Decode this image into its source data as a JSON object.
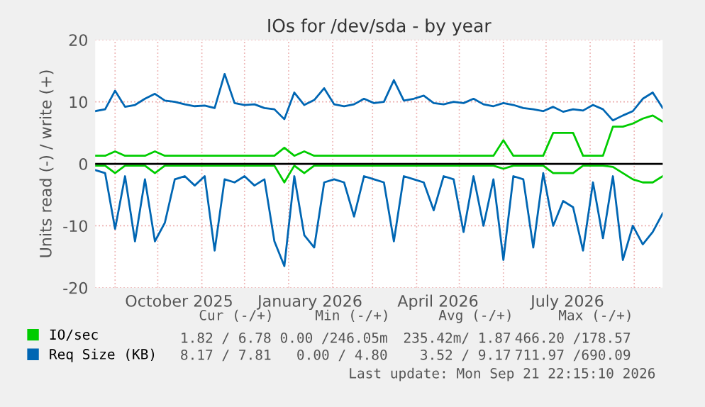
{
  "chart_data": {
    "type": "line",
    "title": "IOs for /dev/sda - by year",
    "ylabel": "Units read (-) / write (+)",
    "x": [
      "2025-08-18",
      "2025-08-25",
      "2025-09-01",
      "2025-09-08",
      "2025-09-15",
      "2025-09-22",
      "2025-09-29",
      "2025-10-06",
      "2025-10-13",
      "2025-10-20",
      "2025-10-27",
      "2025-11-03",
      "2025-11-10",
      "2025-11-17",
      "2025-11-24",
      "2025-12-01",
      "2025-12-08",
      "2025-12-15",
      "2025-12-22",
      "2025-12-29",
      "2026-01-05",
      "2026-01-12",
      "2026-01-19",
      "2026-01-26",
      "2026-02-02",
      "2026-02-09",
      "2026-02-16",
      "2026-02-23",
      "2026-03-02",
      "2026-03-09",
      "2026-03-16",
      "2026-03-23",
      "2026-03-30",
      "2026-04-06",
      "2026-04-13",
      "2026-04-20",
      "2026-04-27",
      "2026-05-04",
      "2026-05-11",
      "2026-05-18",
      "2026-05-25",
      "2026-06-01",
      "2026-06-08",
      "2026-06-15",
      "2026-06-22",
      "2026-06-29",
      "2026-07-06",
      "2026-07-13",
      "2026-07-20",
      "2026-07-27",
      "2026-08-03",
      "2026-08-10",
      "2026-08-17",
      "2026-08-24",
      "2026-08-31",
      "2026-09-07",
      "2026-09-14",
      "2026-09-21"
    ],
    "series": [
      {
        "name": "IO/sec",
        "color": "#00cc00",
        "values": [
          1.3,
          1.3,
          2.0,
          1.3,
          1.3,
          1.3,
          2.0,
          1.3,
          1.3,
          1.3,
          1.3,
          1.3,
          1.3,
          1.3,
          1.3,
          1.3,
          1.3,
          1.3,
          1.3,
          2.6,
          1.3,
          2.0,
          1.3,
          1.3,
          1.3,
          1.3,
          1.3,
          1.3,
          1.3,
          1.3,
          1.3,
          1.3,
          1.3,
          1.3,
          1.3,
          1.3,
          1.3,
          1.3,
          1.3,
          1.3,
          1.3,
          3.8,
          1.3,
          1.3,
          1.3,
          1.3,
          5.0,
          5.0,
          5.0,
          1.3,
          1.3,
          1.3,
          6.0,
          6.0,
          6.5,
          7.3,
          7.8,
          6.8
        ]
      },
      {
        "color": "#00cc00",
        "values": [
          -0.3,
          -0.3,
          -1.5,
          -0.3,
          -0.3,
          -0.3,
          -1.5,
          -0.3,
          -0.3,
          -0.3,
          -0.3,
          -0.3,
          -0.3,
          -0.3,
          -0.3,
          -0.3,
          -0.3,
          -0.3,
          -0.3,
          -3.0,
          -0.3,
          -1.5,
          -0.3,
          -0.3,
          -0.3,
          -0.3,
          -0.3,
          -0.3,
          -0.3,
          -0.3,
          -0.3,
          -0.3,
          -0.3,
          -0.3,
          -0.3,
          -0.3,
          -0.3,
          -0.3,
          -0.3,
          -0.3,
          -0.3,
          -0.8,
          -0.3,
          -0.3,
          -0.3,
          -0.3,
          -1.5,
          -1.5,
          -1.5,
          -0.3,
          -0.3,
          -0.3,
          -0.5,
          -1.5,
          -2.5,
          -3.0,
          -3.0,
          -2.0
        ]
      },
      {
        "name": "Req Size (KB)",
        "color": "#0066b3",
        "values": [
          8.5,
          8.8,
          11.8,
          9.2,
          9.5,
          10.5,
          11.3,
          10.2,
          10.0,
          9.6,
          9.3,
          9.4,
          9.0,
          14.5,
          9.8,
          9.5,
          9.6,
          9.0,
          8.8,
          7.2,
          11.5,
          9.5,
          10.3,
          12.2,
          9.6,
          9.3,
          9.6,
          10.5,
          9.8,
          10.0,
          13.5,
          10.2,
          10.5,
          11.0,
          9.8,
          9.6,
          10.0,
          9.8,
          10.5,
          9.6,
          9.3,
          9.8,
          9.5,
          9.0,
          8.8,
          8.5,
          9.2,
          8.4,
          8.8,
          8.6,
          9.5,
          8.8,
          7.0,
          7.8,
          8.5,
          10.5,
          11.5,
          9.0
        ]
      },
      {
        "color": "#0066b3",
        "values": [
          -1.0,
          -1.5,
          -10.5,
          -2.0,
          -12.5,
          -2.5,
          -12.5,
          -9.5,
          -2.5,
          -2.0,
          -3.5,
          -2.0,
          -14.0,
          -2.5,
          -3.0,
          -2.0,
          -3.5,
          -2.5,
          -12.5,
          -16.5,
          -2.0,
          -11.5,
          -13.5,
          -3.0,
          -2.5,
          -3.0,
          -8.5,
          -2.0,
          -2.5,
          -3.0,
          -12.5,
          -2.0,
          -2.5,
          -3.0,
          -7.5,
          -2.0,
          -2.5,
          -11.0,
          -2.0,
          -10.0,
          -2.5,
          -15.5,
          -2.0,
          -2.5,
          -13.5,
          -1.5,
          -10.0,
          -6.0,
          -7.0,
          -14.0,
          -3.0,
          -12.0,
          -2.0,
          -15.5,
          -10.0,
          -13.0,
          -11.0,
          -8.0
        ]
      }
    ],
    "xlim": [
      "2025-08-18",
      "2026-09-21"
    ],
    "xticks": [
      {
        "value": "2025-09-01",
        "label": null
      },
      {
        "value": "2025-10-01",
        "label": null
      },
      {
        "value": "2025-10-16",
        "label": "October 2025"
      },
      {
        "value": "2025-11-01",
        "label": null
      },
      {
        "value": "2025-12-01",
        "label": null
      },
      {
        "value": "2026-01-01",
        "label": null
      },
      {
        "value": "2026-01-16",
        "label": "January 2026"
      },
      {
        "value": "2026-02-01",
        "label": null
      },
      {
        "value": "2026-03-01",
        "label": null
      },
      {
        "value": "2026-04-01",
        "label": null
      },
      {
        "value": "2026-04-16",
        "label": "April 2026"
      },
      {
        "value": "2026-05-01",
        "label": null
      },
      {
        "value": "2026-06-01",
        "label": null
      },
      {
        "value": "2026-07-01",
        "label": null
      },
      {
        "value": "2026-07-16",
        "label": "July 2026"
      },
      {
        "value": "2026-08-01",
        "label": null
      },
      {
        "value": "2026-09-01",
        "label": null
      }
    ],
    "ylim": [
      -20,
      20
    ],
    "yticks": [
      -20,
      -10,
      0,
      10,
      20
    ],
    "grid": true,
    "legend": "bottom left",
    "marker": "none",
    "line_style": "solid",
    "ref_lines": [
      {
        "axis": "y",
        "value": 0,
        "color": "#000000"
      }
    ],
    "annotations": [
      "Cur (-/+)",
      "Min (-/+)",
      "Avg (-/+)",
      "Max (-/+)",
      "1.82 / 6.78",
      "0.00 /246.05m",
      "235.42m/ 1.87",
      "466.20 /178.57",
      "8.17 / 7.81",
      "0.00 / 4.80",
      "3.52 / 9.17",
      "711.97 /690.09",
      "Last update: Mon Sep 21 22:15:10 2026"
    ]
  }
}
